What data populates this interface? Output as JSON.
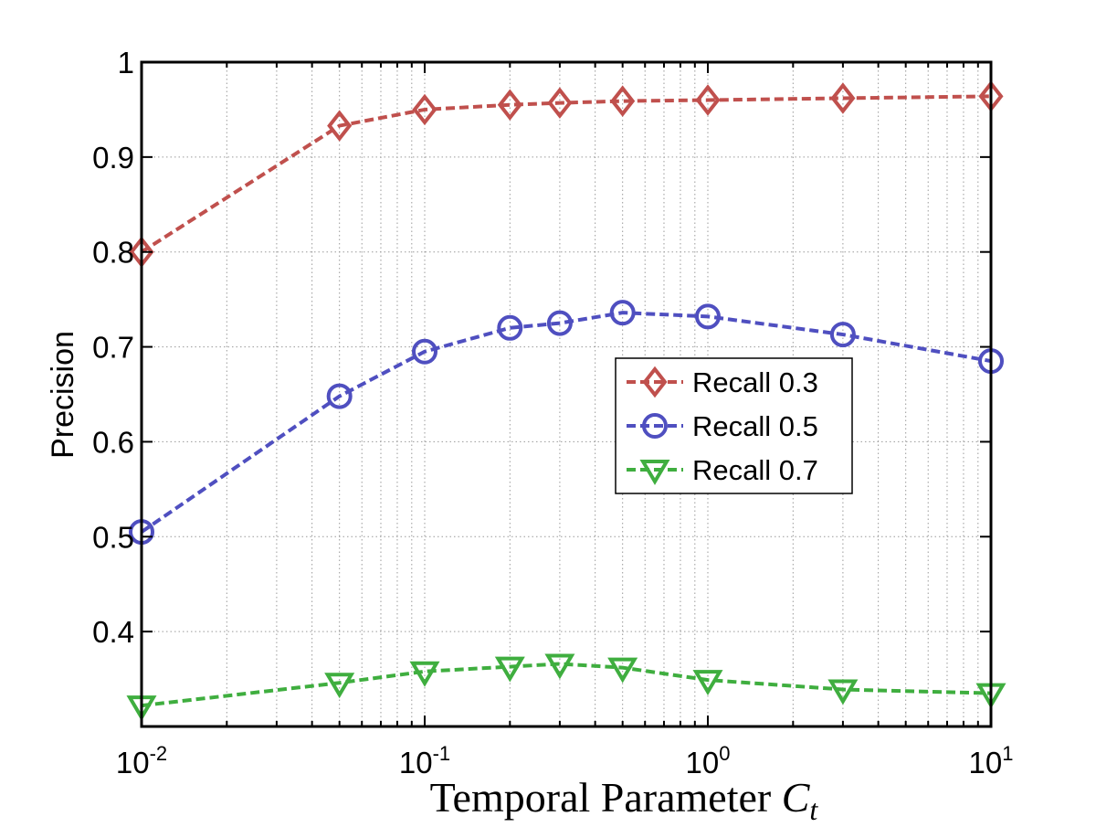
{
  "chart_data": {
    "type": "line",
    "xlabel": "Temporal Parameter ",
    "xlabel_symbol": "C",
    "xlabel_subscript": "t",
    "ylabel": "Precision",
    "x_scale": "log",
    "xlim": [
      0.01,
      10
    ],
    "ylim": [
      0.3,
      1.0
    ],
    "grid": true,
    "legend_position": "center-right",
    "x": [
      0.01,
      0.05,
      0.1,
      0.2,
      0.3,
      0.5,
      1,
      3,
      10
    ],
    "x_ticks": [
      {
        "value": 0.01,
        "base": "10",
        "exp": "-2"
      },
      {
        "value": 0.1,
        "base": "10",
        "exp": "-1"
      },
      {
        "value": 1,
        "base": "10",
        "exp": "0"
      },
      {
        "value": 10,
        "base": "10",
        "exp": "1"
      }
    ],
    "y_ticks": [
      {
        "value": 0.4,
        "label": "0.4"
      },
      {
        "value": 0.5,
        "label": "0.5"
      },
      {
        "value": 0.6,
        "label": "0.6"
      },
      {
        "value": 0.7,
        "label": "0.7"
      },
      {
        "value": 0.8,
        "label": "0.8"
      },
      {
        "value": 0.9,
        "label": "0.9"
      },
      {
        "value": 1.0,
        "label": "1"
      }
    ],
    "series": [
      {
        "name": "Recall 0.3",
        "color": "#c0504d",
        "marker": "diamond",
        "values": [
          0.8,
          0.933,
          0.95,
          0.955,
          0.957,
          0.959,
          0.96,
          0.962,
          0.964
        ]
      },
      {
        "name": "Recall 0.5",
        "color": "#4f4fc0",
        "marker": "circle",
        "values": [
          0.505,
          0.648,
          0.695,
          0.72,
          0.725,
          0.736,
          0.732,
          0.713,
          0.685
        ]
      },
      {
        "name": "Recall 0.7",
        "color": "#3fae3f",
        "marker": "triangle-down",
        "values": [
          0.322,
          0.346,
          0.358,
          0.363,
          0.366,
          0.362,
          0.349,
          0.339,
          0.335
        ]
      }
    ]
  }
}
